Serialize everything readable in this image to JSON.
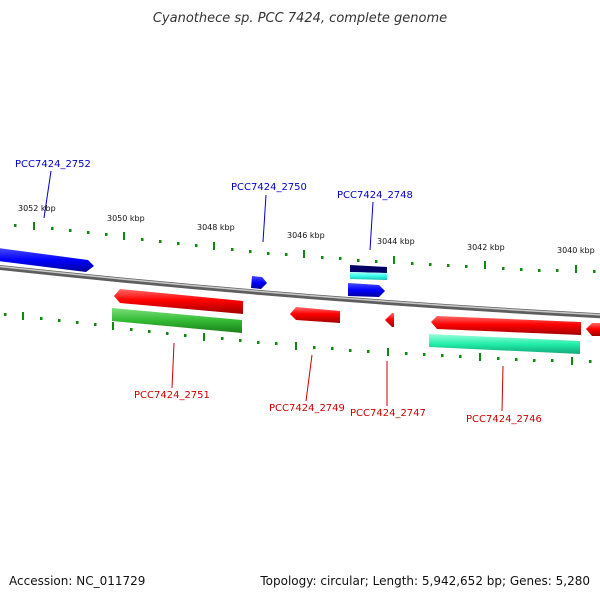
{
  "title": "Cyanothece sp. PCC 7424, complete genome",
  "scale_labels": [
    "3052 kbp",
    "3050 kbp",
    "3048 kbp",
    "3046 kbp",
    "3044 kbp",
    "3042 kbp",
    "3040 kbp"
  ],
  "gene_labels_top": [
    "PCC7424_2752",
    "PCC7424_2750",
    "PCC7424_2748"
  ],
  "gene_labels_bottom": [
    "PCC7424_2751",
    "PCC7424_2749",
    "PCC7424_2747",
    "PCC7424_2746"
  ],
  "footer": {
    "accession": "Accession: NC_011729",
    "summary": "Topology: circular; Length: 5,942,652 bp; Genes: 5,280"
  },
  "colors": {
    "forward_gene": "#0000ff",
    "reverse_gene": "#ff0000",
    "green_feature": "#33bb33",
    "teal_feature": "#22eeaa",
    "navy_feature": "#000066",
    "cyan_feature": "#33ffee",
    "tick": "#0d8a0d",
    "backbone": "#888888"
  }
}
